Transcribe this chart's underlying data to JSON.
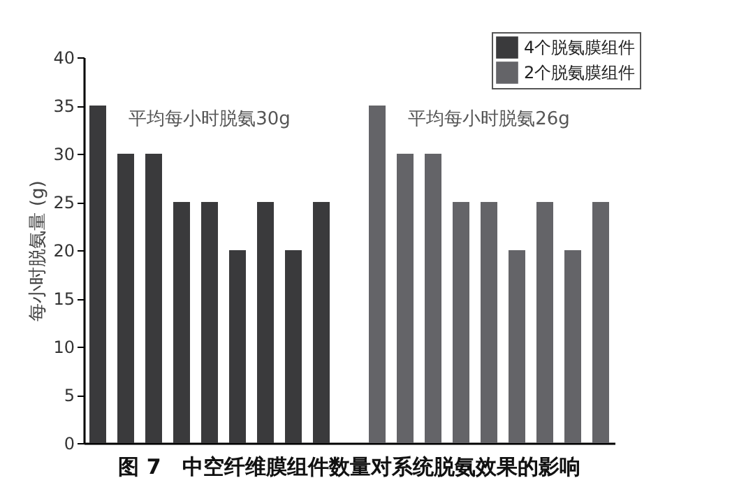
{
  "chart_data": {
    "type": "bar",
    "title": "图 7　中空纤维膜组件数量对系统脱氨效果的影响",
    "ylabel": "每小时脱氨量 (g)",
    "categories": [
      null,
      null,
      null,
      null,
      null,
      null,
      null,
      null,
      null,
      null,
      null,
      null,
      null,
      null,
      null,
      null,
      null,
      null,
      null
    ],
    "series": [
      {
        "name": "4个脱氨膜组件",
        "color": "#3a3a3c",
        "values": [
          35,
          30,
          30,
          25,
          25,
          20,
          25,
          20,
          25,
          null,
          null,
          null,
          null,
          null,
          null,
          null,
          null,
          null,
          null
        ]
      },
      {
        "name": "2个脱氨膜组件",
        "color": "#646468",
        "values": [
          null,
          null,
          null,
          null,
          null,
          null,
          null,
          null,
          null,
          null,
          35,
          30,
          30,
          25,
          25,
          20,
          25,
          20,
          25
        ]
      }
    ],
    "annotations": [
      "平均每小时脱氨30g",
      "平均每小时脱氨26g"
    ],
    "ylim": [
      0,
      40
    ],
    "yticks": [
      0,
      5,
      10,
      15,
      20,
      25,
      30,
      35,
      40
    ],
    "legend": "top right",
    "grid": false,
    "tick_labels": "y"
  }
}
